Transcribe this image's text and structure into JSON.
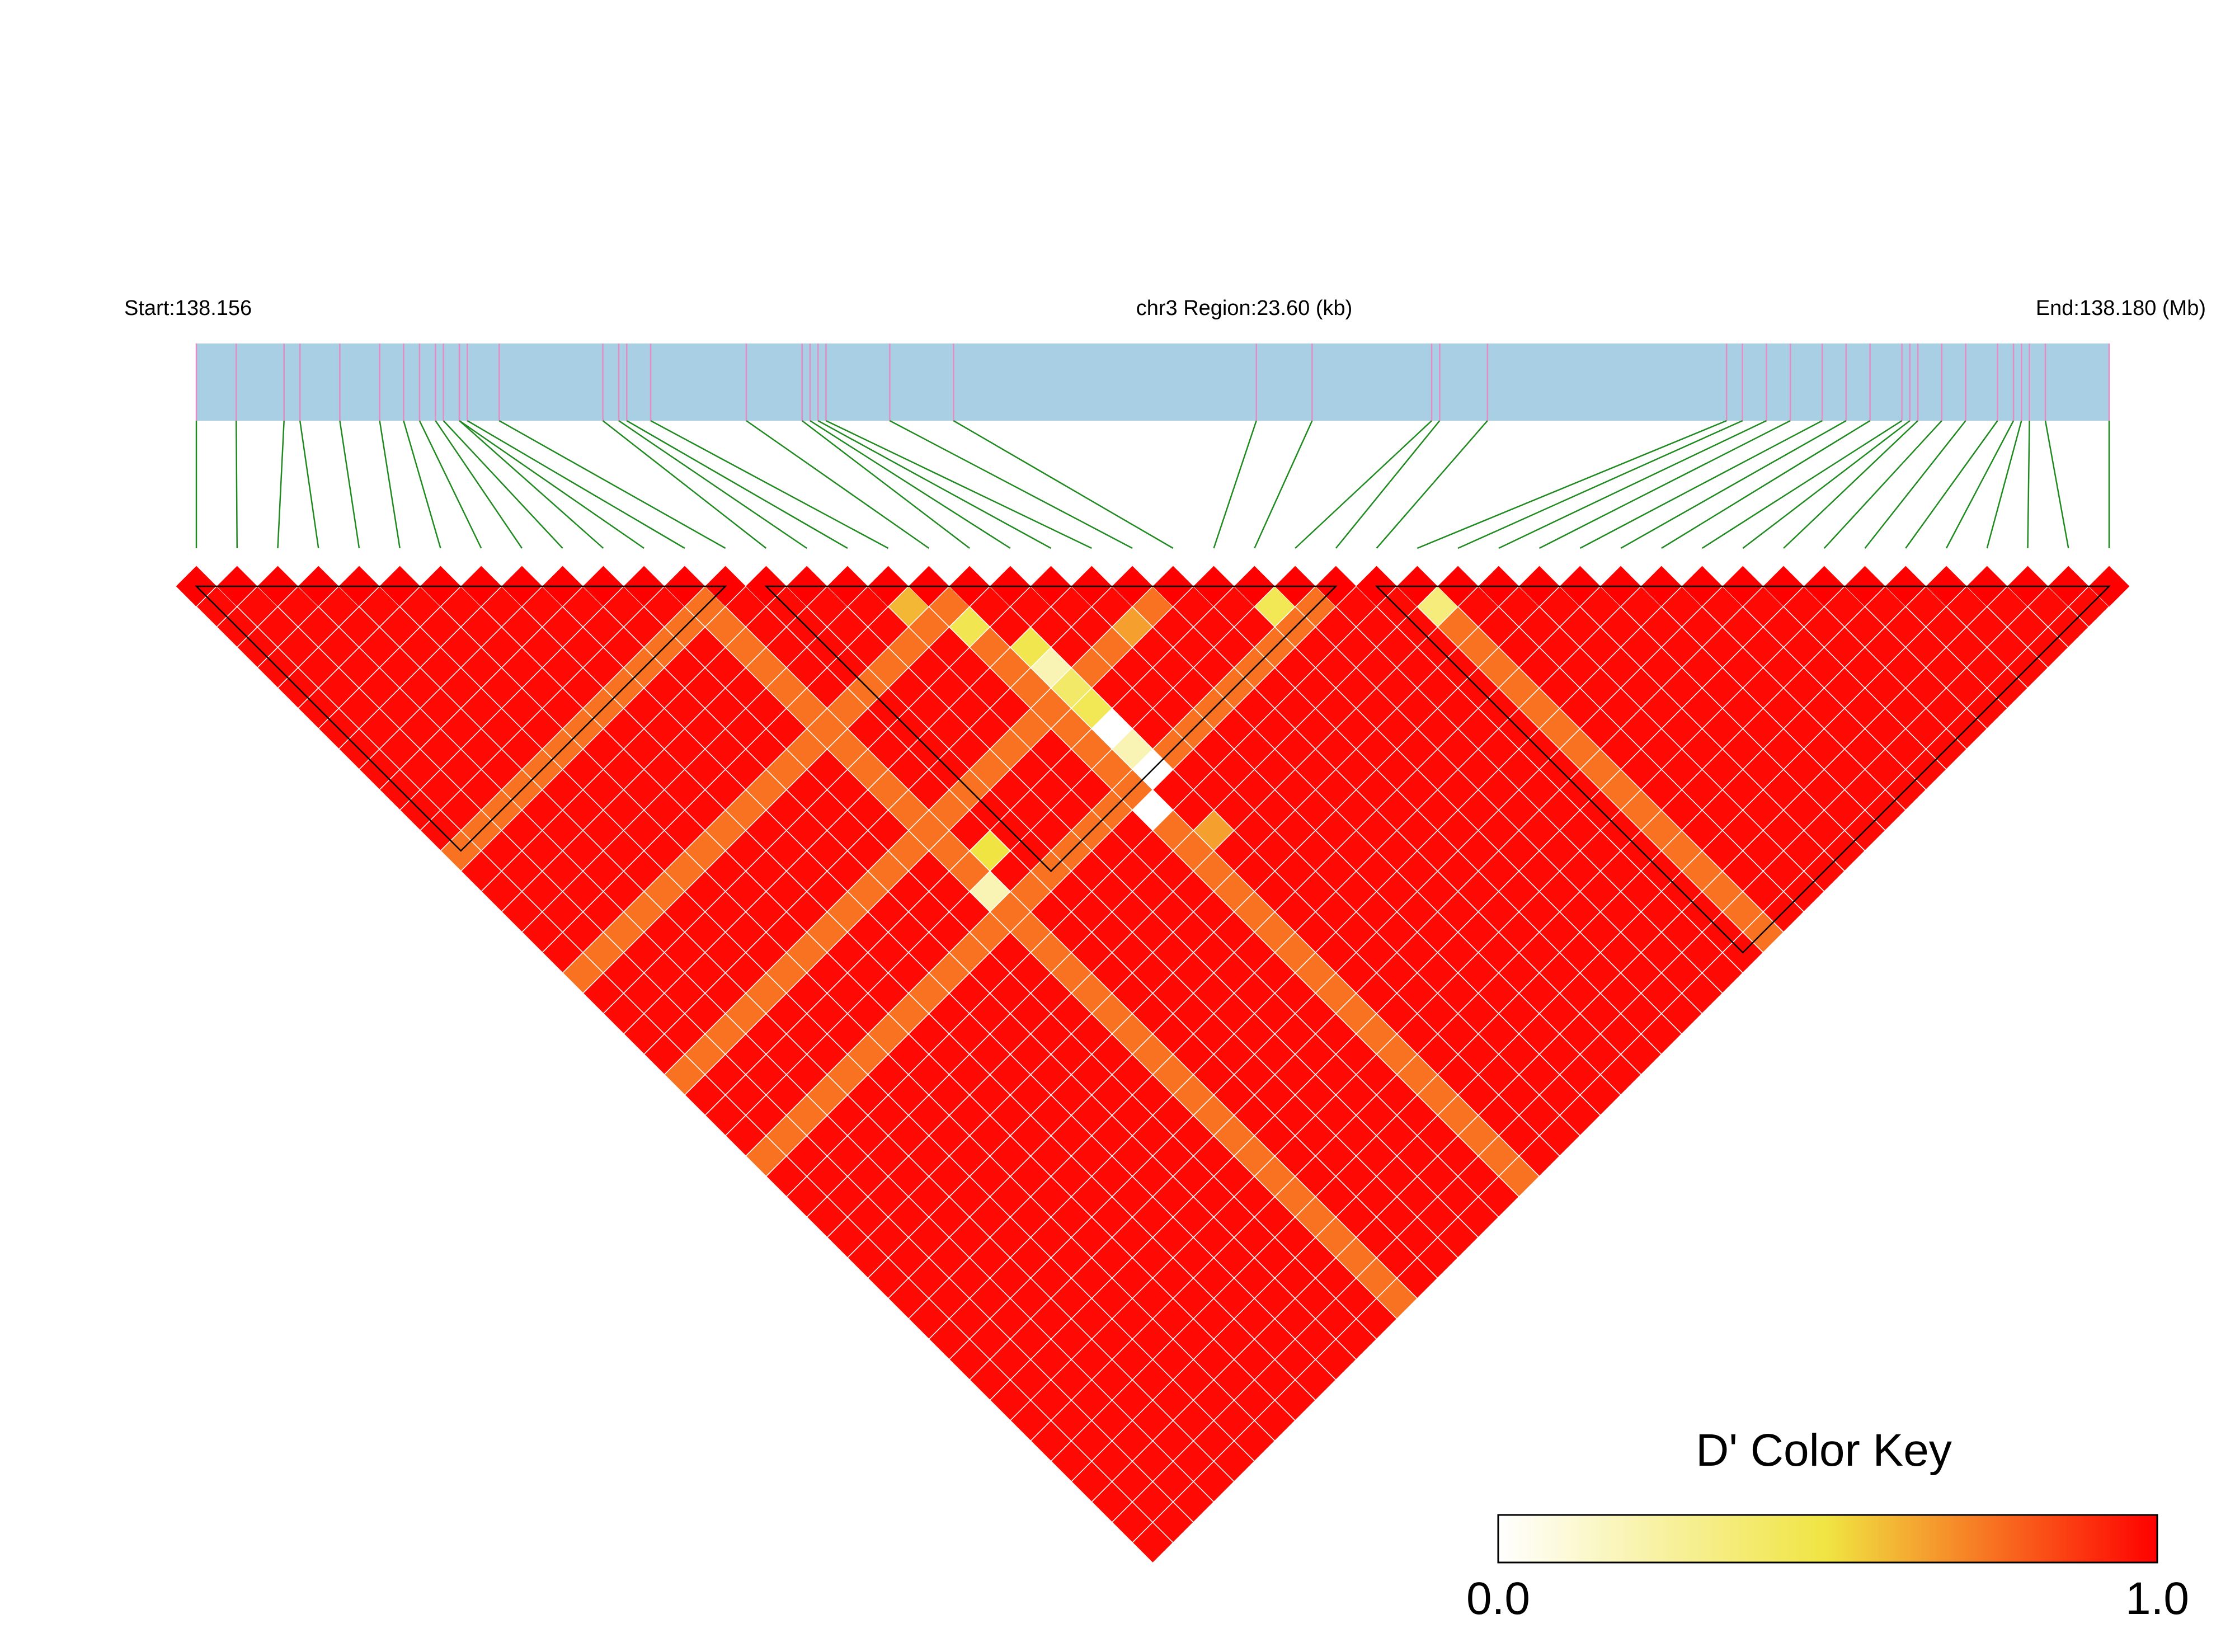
{
  "header": {
    "start_label": "Start:138.156",
    "region_label": "chr3 Region:23.60 (kb)",
    "end_label": "End:138.180 (Mb)"
  },
  "colors": {
    "gene_bar": "#a8cfe3",
    "snp_tick": "#e58cc4",
    "connector": "#1f8a1f",
    "block_outline": "#000000",
    "cell_border": "#ffffff",
    "ld_low": "#ffffff",
    "ld_mid": "#f0e442",
    "ld_high": "#ff0000"
  },
  "color_key": {
    "title": "D' Color Key",
    "min_label": "0.0",
    "max_label": "1.0"
  },
  "chart_data": {
    "type": "heatmap",
    "chromosome": "chr3",
    "start_mb": 138.156,
    "end_mb": 138.18,
    "region_kb": 23.6,
    "metric": "D'",
    "value_range": [
      0,
      1
    ],
    "snp_count": 48,
    "snp_positions_mb": [
      138.156,
      138.1565,
      138.1571,
      138.1573,
      138.1578,
      138.1583,
      138.1586,
      138.1588,
      138.159,
      138.1591,
      138.1593,
      138.1593,
      138.1594,
      138.1598,
      138.1611,
      138.1613,
      138.1614,
      138.1617,
      138.1629,
      138.1636,
      138.1637,
      138.1638,
      138.1639,
      138.1647,
      138.1655,
      138.1693,
      138.17,
      138.1715,
      138.1716,
      138.1722,
      138.1752,
      138.1754,
      138.1757,
      138.176,
      138.1764,
      138.1767,
      138.177,
      138.1774,
      138.1775,
      138.1776,
      138.1779,
      138.1782,
      138.1786,
      138.1788,
      138.1789,
      138.179,
      138.1792,
      138.18
    ],
    "haplotype_blocks": [
      [
        0,
        13
      ],
      [
        14,
        28
      ],
      [
        29,
        47
      ]
    ],
    "default_dprime": 0.98,
    "reduced_cells": [
      {
        "i": 26,
        "j": 27,
        "d": 0.45
      },
      {
        "i": 30,
        "j": 31,
        "d": 0.35
      },
      {
        "i": 18,
        "j": 20,
        "d": 0.46
      },
      {
        "i": 19,
        "j": 22,
        "d": 0.47
      },
      {
        "i": 19,
        "j": 23,
        "d": 0.2
      },
      {
        "i": 19,
        "j": 24,
        "d": 0.4
      },
      {
        "i": 19,
        "j": 25,
        "d": 0.45
      },
      {
        "i": 19,
        "j": 26,
        "d": 0.0
      },
      {
        "i": 19,
        "j": 27,
        "d": 0.2
      },
      {
        "i": 19,
        "j": 28,
        "d": 0.0
      },
      {
        "i": 18,
        "j": 29,
        "d": 0.0
      },
      {
        "i": 13,
        "j": 26,
        "d": 0.5
      },
      {
        "i": 12,
        "j": 27,
        "d": 0.2
      },
      {
        "i": 17,
        "j": 18,
        "d": 0.6
      },
      {
        "i": 19,
        "j": 31,
        "d": 0.65
      },
      {
        "i": 22,
        "j": 24,
        "d": 0.65
      }
    ],
    "orange_rows": [
      12,
      18,
      30
    ],
    "orange_cols": [
      13,
      19,
      24,
      28
    ],
    "orange_dprime": 0.75
  }
}
